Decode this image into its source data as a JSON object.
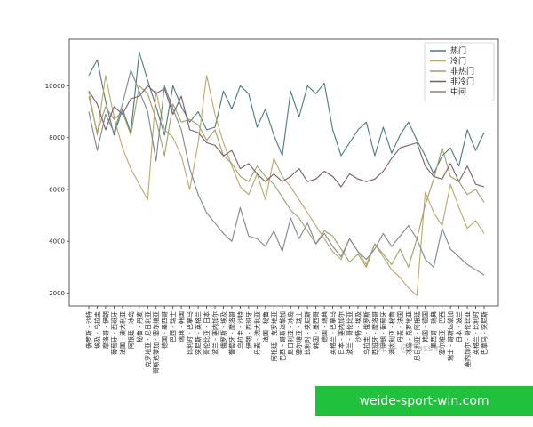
{
  "chart_data": {
    "type": "line",
    "title": "",
    "xlabel": "",
    "ylabel": "",
    "ylim": [
      1500,
      11800
    ],
    "yticks": [
      2000,
      4000,
      6000,
      8000,
      10000
    ],
    "grid": false,
    "legend_position": "top-right",
    "categories": [
      "俄罗斯 - 沙特",
      "埃及 - 乌拉圭",
      "摩洛哥 - 伊朗",
      "葡萄牙 - 西班牙",
      "法国 - 澳大利亚",
      "阿根廷 - 冰岛",
      "秘鲁 - 丹麦",
      "克罗地亚 - 尼日利亚",
      "哥斯达黎加 - 塞尔维亚",
      "德国 - 墨西哥",
      "巴西 - 瑞士",
      "瑞典 - 韩国",
      "比利时 - 巴拿马",
      "突尼斯 - 英格兰",
      "哥伦比亚 - 日本",
      "波兰 - 塞内加尔",
      "俄罗斯 - 埃及",
      "葡萄牙 - 摩洛哥",
      "乌拉圭 - 沙特",
      "伊朗 - 西班牙",
      "丹麦 - 澳大利亚",
      "法国 - 秘鲁",
      "阿根廷 - 克罗地亚",
      "巴西 - 哥斯达黎加",
      "尼日利亚 - 冰岛",
      "塞尔维亚 - 瑞士",
      "比利时 - 突尼斯",
      "韩国 - 墨西哥",
      "德国 - 瑞典",
      "英格兰 - 巴拿马",
      "日本 - 塞内加尔",
      "波兰 - 哥伦比亚",
      "沙特 - 埃及",
      "乌拉圭 - 俄罗斯",
      "西班牙 - 摩洛哥",
      "伊朗 - 葡萄牙",
      "澳大利亚 - 秘鲁",
      "丹麦 - 法国",
      "冰岛 - 克罗地亚",
      "尼日利亚 - 阿根廷",
      "韩国 - 德国",
      "墨西哥 - 瑞典",
      "塞尔维亚 - 巴西",
      "瑞士 - 哥斯达黎加",
      "日本 - 波兰",
      "塞内加尔 - 哥伦比亚",
      "英格兰 - 比利时",
      "巴拿马 - 突尼斯"
    ],
    "series": [
      {
        "name": "热门",
        "color": "#4a7a7a",
        "values": [
          10400,
          11000,
          9400,
          8100,
          9100,
          8200,
          11300,
          10200,
          9200,
          8100,
          10000,
          9200,
          8600,
          9000,
          8300,
          8400,
          9800,
          9100,
          10000,
          9700,
          8400,
          9100,
          8100,
          7300,
          9800,
          8800,
          10000,
          9700,
          10100,
          8300,
          7300,
          7800,
          8300,
          8600,
          7300,
          8400,
          7400,
          8100,
          8600,
          7900,
          7300,
          6600,
          7300,
          7600,
          6900,
          8300,
          7500,
          8200
        ]
      },
      {
        "name": "冷门",
        "color": "#b8a96a",
        "values": [
          9800,
          8100,
          10400,
          8800,
          7600,
          6800,
          6200,
          5600,
          9800,
          8300,
          8000,
          7300,
          6000,
          7800,
          10400,
          8900,
          7800,
          6900,
          6100,
          5800,
          6600,
          5600,
          7200,
          6500,
          6100,
          5600,
          5100,
          4600,
          4100,
          3600,
          3300,
          4100,
          3600,
          3100,
          3900,
          3400,
          2900,
          2600,
          2200,
          1900,
          5900,
          5100,
          4600,
          6200,
          5300,
          4500,
          4800,
          4300
        ]
      },
      {
        "name": "非热门",
        "color": "#a0a068",
        "values": [
          9600,
          8200,
          9200,
          8700,
          9000,
          8100,
          10000,
          9700,
          8700,
          7300,
          9300,
          8600,
          8700,
          8500,
          7900,
          8300,
          7300,
          7000,
          6500,
          6300,
          6900,
          6500,
          6200,
          5700,
          5200,
          4900,
          4400,
          3900,
          4400,
          4200,
          3700,
          3200,
          3500,
          3000,
          3900,
          3500,
          3100,
          3700,
          3000,
          4100,
          5400,
          6400,
          7600,
          6500,
          6300,
          5800,
          6000,
          5500
        ]
      },
      {
        "name": "非冷门",
        "color": "#7a5a62",
        "values": [
          9800,
          9300,
          8300,
          9200,
          8900,
          9500,
          9600,
          10000,
          9700,
          9900,
          8900,
          9600,
          8300,
          8200,
          7800,
          7700,
          7300,
          7500,
          6800,
          7000,
          6600,
          6300,
          6600,
          6300,
          6500,
          6800,
          6300,
          6400,
          6700,
          6500,
          6100,
          6600,
          6400,
          6300,
          6400,
          6700,
          7200,
          7600,
          7700,
          7800,
          6900,
          6500,
          6400,
          7000,
          6300,
          6900,
          6200,
          6100
        ]
      },
      {
        "name": "中间",
        "color": "#7d868e",
        "values": [
          9000,
          7500,
          8900,
          8200,
          9300,
          10600,
          9800,
          9000,
          7100,
          10000,
          9100,
          8300,
          6800,
          5800,
          5100,
          4700,
          4300,
          4000,
          5300,
          4200,
          4100,
          3800,
          4400,
          3600,
          4900,
          4100,
          4700,
          3900,
          4300,
          3800,
          3400,
          4100,
          3600,
          3300,
          3700,
          4300,
          3800,
          4200,
          4600,
          4100,
          3300,
          3000,
          4500,
          3700,
          3400,
          3100,
          2900,
          2700
        ]
      }
    ]
  },
  "watermark": "知乎 @Cassin",
  "banner_text": "weide-sport-win.com"
}
